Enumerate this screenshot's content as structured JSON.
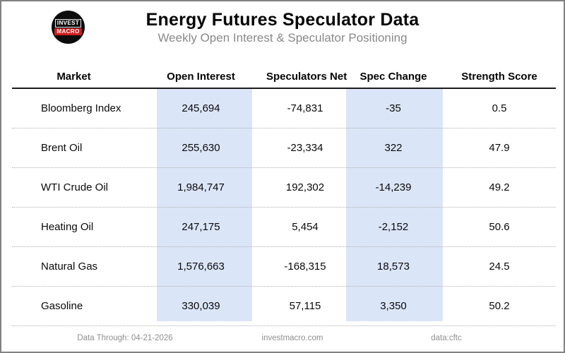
{
  "header": {
    "logo_line1": "INVEST",
    "logo_line2": "MACRO",
    "title": "Energy Futures Speculator Data",
    "subtitle": "Weekly Open Interest & Speculator Positioning"
  },
  "chart_data": {
    "type": "table",
    "title": "Energy Futures Speculator Data",
    "subtitle": "Weekly Open Interest & Speculator Positioning",
    "columns": [
      "Market",
      "Open Interest",
      "Speculators Net",
      "Spec Change",
      "Strength Score"
    ],
    "rows": [
      [
        "Bloomberg Index",
        245694,
        -74831,
        -35,
        0.5
      ],
      [
        "Brent Oil",
        255630,
        -23334,
        322,
        47.9
      ],
      [
        "WTI Crude Oil",
        1984747,
        192302,
        -14239,
        49.2
      ],
      [
        "Heating Oil",
        247175,
        5454,
        -2152,
        50.6
      ],
      [
        "Natural Gas",
        1576663,
        -168315,
        18573,
        24.5
      ],
      [
        "Gasoline",
        330039,
        57115,
        3350,
        50.2
      ]
    ],
    "highlighted_columns": [
      "Open Interest",
      "Spec Change"
    ],
    "highlight_color": "#dbe5f8",
    "legend_position": "none",
    "grid": "dotted-row-separators"
  },
  "footer": {
    "data_through": "Data Through: 04-21-2026",
    "site": "investmacro.com",
    "source": "data:cftc"
  },
  "colors": {
    "highlight_blue": "#dbe5f8",
    "logo_red": "#cf1d1d",
    "subtitle_gray": "#898989",
    "footer_gray": "#8f8f8f",
    "border_gray": "#828282"
  }
}
